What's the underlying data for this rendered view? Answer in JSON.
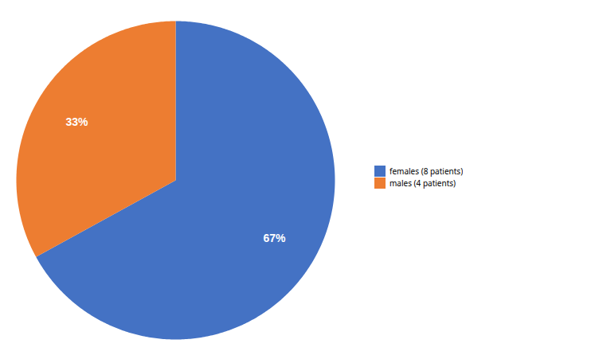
{
  "chart_data": {
    "type": "pie",
    "categories": [
      "females (8 patients)",
      "males (4 patients)"
    ],
    "values": [
      67,
      33
    ],
    "value_labels": [
      "67%",
      "33%"
    ],
    "colors": [
      "#4472C4",
      "#ED7D31"
    ],
    "data_labels": true,
    "legend": "right"
  }
}
